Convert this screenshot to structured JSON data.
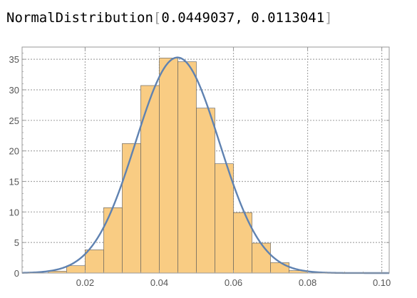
{
  "output": {
    "head": "NormalDistribution",
    "open_bracket": "[",
    "mean": "0.0449037",
    "separator": ", ",
    "sd": "0.0113041",
    "close_bracket": "]"
  },
  "chart_data": {
    "type": "bar",
    "title": "",
    "xlabel": "",
    "ylabel": "",
    "xlim": [
      0.003,
      0.102
    ],
    "ylim": [
      0,
      37
    ],
    "grid": true,
    "x_ticks": [
      {
        "value": 0.02,
        "label": "0.02"
      },
      {
        "value": 0.04,
        "label": "0.04"
      },
      {
        "value": 0.06,
        "label": "0.06"
      },
      {
        "value": 0.08,
        "label": "0.08"
      },
      {
        "value": 0.1,
        "label": "0.10"
      }
    ],
    "y_ticks": [
      {
        "value": 0,
        "label": "0"
      },
      {
        "value": 5,
        "label": "5"
      },
      {
        "value": 10,
        "label": "10"
      },
      {
        "value": 15,
        "label": "15"
      },
      {
        "value": 20,
        "label": "20"
      },
      {
        "value": 25,
        "label": "25"
      },
      {
        "value": 30,
        "label": "30"
      },
      {
        "value": 35,
        "label": "35"
      }
    ],
    "histogram": {
      "bin_width": 0.005,
      "bins": [
        {
          "start": 0.01,
          "value": 0.3
        },
        {
          "start": 0.015,
          "value": 1.2
        },
        {
          "start": 0.02,
          "value": 3.8
        },
        {
          "start": 0.025,
          "value": 10.7
        },
        {
          "start": 0.03,
          "value": 21.2
        },
        {
          "start": 0.035,
          "value": 30.7
        },
        {
          "start": 0.04,
          "value": 35.2
        },
        {
          "start": 0.045,
          "value": 34.6
        },
        {
          "start": 0.05,
          "value": 27.0
        },
        {
          "start": 0.055,
          "value": 17.9
        },
        {
          "start": 0.06,
          "value": 9.9
        },
        {
          "start": 0.065,
          "value": 4.9
        },
        {
          "start": 0.07,
          "value": 1.7
        },
        {
          "start": 0.075,
          "value": 0.4
        }
      ]
    },
    "curve": {
      "type": "normal-pdf",
      "mean": 0.0449037,
      "sd": 0.0113041
    },
    "colors": {
      "bar_fill": "#f9cc83",
      "bar_stroke": "#5a5a5a",
      "curve": "#5f82b1",
      "grid": "#a8a8a8",
      "frame": "#9a9a9a"
    }
  }
}
